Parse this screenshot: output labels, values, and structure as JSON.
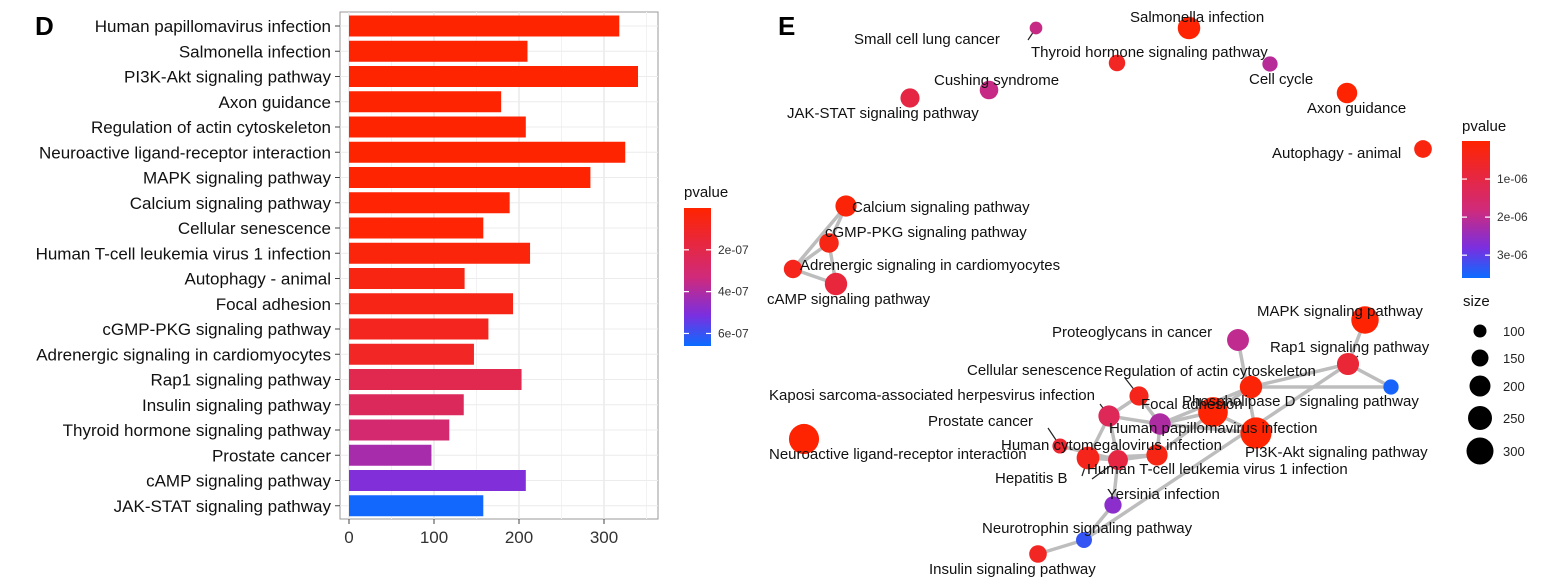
{
  "panels": {
    "d_letter": "D",
    "e_letter": "E"
  },
  "colors": {
    "low_p": "#ff2400",
    "mid_p": "#8b2ad0",
    "high_p": "#0a5cff",
    "edge": "#bdbdbd",
    "panel_bg": "#ffffff",
    "grid": "#ececec"
  },
  "chart_data": [
    {
      "type": "bar",
      "orientation": "horizontal",
      "categories": [
        "Human papillomavirus infection",
        "Salmonella infection",
        "PI3K-Akt signaling pathway",
        "Axon guidance",
        "Regulation of actin cytoskeleton",
        "Neuroactive ligand-receptor interaction",
        "MAPK signaling pathway",
        "Calcium signaling pathway",
        "Cellular senescence",
        "Human T-cell leukemia virus 1 infection",
        "Autophagy - animal",
        "Focal adhesion",
        "cGMP-PKG signaling pathway",
        "Adrenergic signaling in cardiomyocytes",
        "Rap1 signaling pathway",
        "Insulin signaling pathway",
        "Thyroid hormone signaling pathway",
        "Prostate cancer",
        "cAMP signaling pathway",
        "JAK-STAT signaling pathway"
      ],
      "values": [
        318,
        210,
        340,
        179,
        208,
        325,
        284,
        189,
        158,
        213,
        136,
        193,
        164,
        147,
        203,
        135,
        118,
        97,
        208,
        158
      ],
      "pvalues": [
        1e-10,
        5e-09,
        1e-10,
        2e-09,
        5e-09,
        5e-10,
        2e-09,
        1e-08,
        1e-08,
        3e-08,
        5e-08,
        6e-08,
        8e-08,
        1e-07,
        2.1e-07,
        2.5e-07,
        3e-07,
        4.2e-07,
        5e-07,
        6.5e-07
      ],
      "xlim": [
        0,
        360
      ],
      "xticks": [
        0,
        100,
        200,
        300
      ],
      "grid": true,
      "legend": {
        "title": "pvalue",
        "position": "right",
        "ticks": [
          {
            "value": 2e-07,
            "label": "2e-07"
          },
          {
            "value": 4e-07,
            "label": "4e-07"
          },
          {
            "value": 6e-07,
            "label": "6e-07"
          }
        ],
        "range": [
          0,
          6.6e-07
        ]
      }
    },
    {
      "type": "network",
      "nodes": [
        {
          "id": "scl",
          "label": "Small cell lung cancer",
          "size": 60,
          "pvalue": 1.9e-06
        },
        {
          "id": "sal",
          "label": "Salmonella infection",
          "size": 210,
          "pvalue": 5e-08
        },
        {
          "id": "thy",
          "label": "Thyroid hormone signaling pathway",
          "size": 118,
          "pvalue": 5e-07
        },
        {
          "id": "cush",
          "label": "Cushing syndrome",
          "size": 150,
          "pvalue": 1.9e-06
        },
        {
          "id": "cc",
          "label": "Cell cycle",
          "size": 100,
          "pvalue": 2.1e-06
        },
        {
          "id": "jak",
          "label": "JAK-STAT signaling pathway",
          "size": 158,
          "pvalue": 1e-06
        },
        {
          "id": "axon",
          "label": "Axon guidance",
          "size": 179,
          "pvalue": 1e-08
        },
        {
          "id": "auto",
          "label": "Autophagy - animal",
          "size": 136,
          "pvalue": 2e-07
        },
        {
          "id": "calc",
          "label": "Calcium signaling pathway",
          "size": 189,
          "pvalue": 1e-07
        },
        {
          "id": "cgmp",
          "label": "cGMP-PKG signaling pathway",
          "size": 164,
          "pvalue": 3e-07
        },
        {
          "id": "adr",
          "label": "Adrenergic signaling in cardiomyocytes",
          "size": 147,
          "pvalue": 4e-07
        },
        {
          "id": "camp",
          "label": "cAMP signaling pathway",
          "size": 208,
          "pvalue": 9e-07
        },
        {
          "id": "mapk",
          "label": "MAPK signaling pathway",
          "size": 284,
          "pvalue": 5e-08
        },
        {
          "id": "prot",
          "label": "Proteoglycans in cancer",
          "size": 200,
          "pvalue": 2e-06
        },
        {
          "id": "rap1",
          "label": "Rap1 signaling pathway",
          "size": 203,
          "pvalue": 8e-07
        },
        {
          "id": "cs",
          "label": "Cellular senescence",
          "size": 158,
          "pvalue": 4e-07
        },
        {
          "id": "ract",
          "label": "Regulation of actin cytoskeleton",
          "size": 208,
          "pvalue": 1e-07
        },
        {
          "id": "kshv",
          "label": "Kaposi sarcoma-associated herpesvirus infection",
          "size": 190,
          "pvalue": 1.3e-06
        },
        {
          "id": "fa",
          "label": "Focal adhesion",
          "size": 193,
          "pvalue": 2.2e-06
        },
        {
          "id": "pld",
          "label": "Phospholipase D signaling pathway",
          "size": 100,
          "pvalue": 3.5e-06
        },
        {
          "id": "hpv",
          "label": "Human papillomavirus infection",
          "size": 318,
          "pvalue": 5e-08
        },
        {
          "id": "pc",
          "label": "Prostate cancer",
          "size": 97,
          "pvalue": 7e-07
        },
        {
          "id": "hcmv",
          "label": "Human cytomegalovirus infection",
          "size": 190,
          "pvalue": 3e-07
        },
        {
          "id": "nlr",
          "label": "Neuroactive ligand-receptor interaction",
          "size": 325,
          "pvalue": 1e-08
        },
        {
          "id": "pi3k",
          "label": "PI3K-Akt signaling pathway",
          "size": 340,
          "pvalue": 1e-08
        },
        {
          "id": "htlv",
          "label": "Human T-cell leukemia virus 1 infection",
          "size": 213,
          "pvalue": 4e-07
        },
        {
          "id": "hepb",
          "label": "Hepatitis B",
          "size": 170,
          "pvalue": 1e-06
        },
        {
          "id": "yer",
          "label": "Yersinia infection",
          "size": 130,
          "pvalue": 2.6e-06
        },
        {
          "id": "neur",
          "label": "Neurotrophin signaling pathway",
          "size": 110,
          "pvalue": 3.3e-06
        },
        {
          "id": "ins",
          "label": "Insulin signaling pathway",
          "size": 135,
          "pvalue": 5e-07
        }
      ],
      "edges": [
        [
          "calc",
          "cgmp"
        ],
        [
          "cgmp",
          "adr"
        ],
        [
          "adr",
          "camp"
        ],
        [
          "cgmp",
          "camp"
        ],
        [
          "calc",
          "adr"
        ],
        [
          "ract",
          "pld"
        ],
        [
          "pld",
          "rap1"
        ],
        [
          "rap1",
          "mapk"
        ],
        [
          "rap1",
          "neur"
        ],
        [
          "ract",
          "fa"
        ],
        [
          "fa",
          "pi3k"
        ],
        [
          "hpv",
          "pi3k"
        ],
        [
          "fa",
          "hpv"
        ],
        [
          "ract",
          "hpv"
        ],
        [
          "cs",
          "kshv"
        ],
        [
          "kshv",
          "fa"
        ],
        [
          "cs",
          "fa"
        ],
        [
          "kshv",
          "htlv"
        ],
        [
          "kshv",
          "hepb"
        ],
        [
          "fa",
          "hcmv"
        ],
        [
          "hcmv",
          "htlv"
        ],
        [
          "hepb",
          "htlv"
        ],
        [
          "hcmv",
          "hepb"
        ],
        [
          "hepb",
          "yer"
        ],
        [
          "yer",
          "neur"
        ],
        [
          "neur",
          "ins"
        ],
        [
          "pc",
          "hepb"
        ],
        [
          "hpv",
          "hcmv"
        ],
        [
          "ract",
          "rap1"
        ],
        [
          "prot",
          "pi3k"
        ]
      ],
      "legend": {
        "color_title": "pvalue",
        "color_ticks": [
          {
            "value": 1e-06,
            "label": "1e-06"
          },
          {
            "value": 2e-06,
            "label": "2e-06"
          },
          {
            "value": 3e-06,
            "label": "3e-06"
          }
        ],
        "color_range": [
          0,
          3.6e-06
        ],
        "size_title": "size",
        "size_ticks": [
          100,
          150,
          200,
          250,
          300
        ],
        "position": "right"
      }
    }
  ]
}
